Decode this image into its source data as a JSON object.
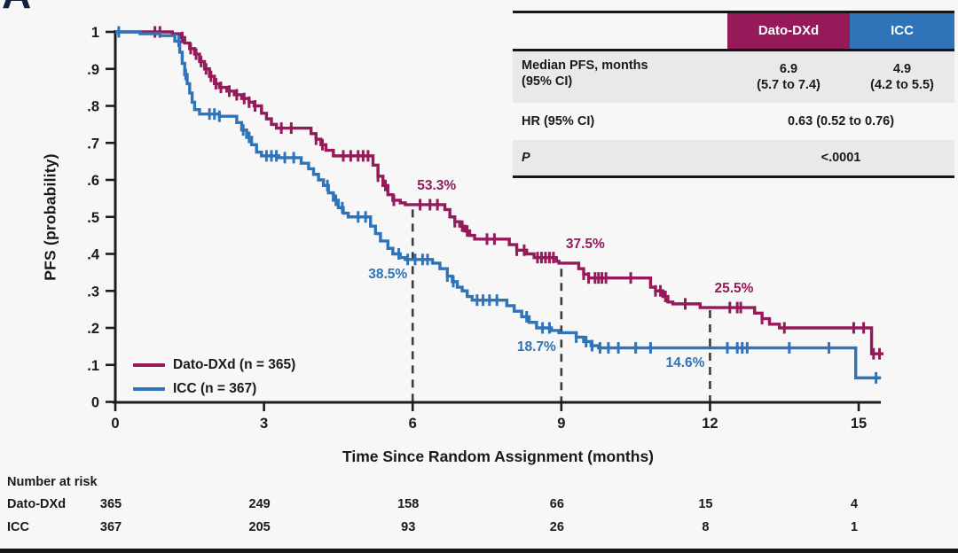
{
  "panel_label": "A",
  "colors": {
    "dato": "#96195a",
    "icc": "#2f74b8",
    "axis": "#1d1d1f",
    "dashed_line": "#3b3b3b",
    "row_shade": "#e9e9ea",
    "background": "#f7f7f8"
  },
  "chart_data": {
    "type": "line",
    "subtype": "kaplan-meier-step",
    "xlabel": "Time Since Random Assignment (months)",
    "ylabel": "PFS (probability)",
    "xlim": [
      0,
      15.5
    ],
    "ylim": [
      0,
      1
    ],
    "x_ticks": [
      0,
      3,
      6,
      9,
      12,
      15
    ],
    "x_tick_labels": [
      "0",
      "3",
      "6",
      "9",
      "12",
      "15"
    ],
    "y_ticks": [
      1,
      0.9,
      0.8,
      0.7,
      0.6,
      0.5,
      0.4,
      0.3,
      0.2,
      0.1,
      0
    ],
    "y_tick_labels": [
      "1",
      ".9",
      ".8",
      ".7",
      ".6",
      ".5",
      ".4",
      ".3",
      ".2",
      ".1",
      "0"
    ],
    "grid": false,
    "legend_position": "lower-left-inside",
    "series": [
      {
        "name": "Dato-DXd (n = 365)",
        "short_name": "Dato-DXd",
        "color": "#96195a",
        "points": [
          [
            0,
            1.0
          ],
          [
            1.15,
            0.995
          ],
          [
            1.3,
            0.985
          ],
          [
            1.4,
            0.97
          ],
          [
            1.5,
            0.955
          ],
          [
            1.6,
            0.94
          ],
          [
            1.7,
            0.92
          ],
          [
            1.8,
            0.9
          ],
          [
            1.9,
            0.88
          ],
          [
            2.0,
            0.86
          ],
          [
            2.1,
            0.85
          ],
          [
            2.25,
            0.84
          ],
          [
            2.4,
            0.83
          ],
          [
            2.55,
            0.82
          ],
          [
            2.7,
            0.81
          ],
          [
            2.8,
            0.8
          ],
          [
            2.95,
            0.78
          ],
          [
            3.05,
            0.765
          ],
          [
            3.15,
            0.75
          ],
          [
            3.25,
            0.74
          ],
          [
            3.95,
            0.725
          ],
          [
            4.05,
            0.71
          ],
          [
            4.15,
            0.695
          ],
          [
            4.25,
            0.68
          ],
          [
            4.4,
            0.665
          ],
          [
            5.2,
            0.64
          ],
          [
            5.3,
            0.61
          ],
          [
            5.4,
            0.585
          ],
          [
            5.5,
            0.56
          ],
          [
            5.6,
            0.545
          ],
          [
            5.75,
            0.538
          ],
          [
            5.85,
            0.533
          ],
          [
            6.65,
            0.52
          ],
          [
            6.75,
            0.5
          ],
          [
            6.85,
            0.487
          ],
          [
            6.95,
            0.475
          ],
          [
            7.05,
            0.462
          ],
          [
            7.15,
            0.45
          ],
          [
            7.25,
            0.44
          ],
          [
            7.95,
            0.425
          ],
          [
            8.1,
            0.41
          ],
          [
            8.3,
            0.4
          ],
          [
            8.45,
            0.39
          ],
          [
            8.9,
            0.38
          ],
          [
            8.95,
            0.375
          ],
          [
            9.35,
            0.36
          ],
          [
            9.45,
            0.345
          ],
          [
            9.55,
            0.335
          ],
          [
            10.8,
            0.31
          ],
          [
            10.9,
            0.3
          ],
          [
            11.05,
            0.285
          ],
          [
            11.15,
            0.27
          ],
          [
            11.25,
            0.265
          ],
          [
            11.8,
            0.255
          ],
          [
            12.9,
            0.24
          ],
          [
            13.05,
            0.225
          ],
          [
            13.2,
            0.21
          ],
          [
            13.4,
            0.2
          ],
          [
            15.26,
            0.13
          ],
          [
            15.5,
            0.13
          ]
        ],
        "censor_times": [
          0.8,
          0.9,
          1.35,
          1.52,
          1.63,
          1.73,
          1.83,
          1.93,
          2.03,
          2.13,
          2.3,
          2.45,
          2.6,
          2.7,
          2.82,
          3.35,
          3.55,
          4.05,
          4.18,
          4.6,
          4.75,
          4.9,
          5.0,
          5.1,
          5.3,
          5.45,
          5.62,
          6.15,
          6.35,
          6.5,
          6.85,
          7.0,
          7.1,
          7.5,
          7.65,
          8.1,
          8.25,
          8.52,
          8.6,
          8.68,
          8.76,
          8.84,
          9.45,
          9.55,
          9.68,
          9.75,
          9.82,
          9.9,
          10.4,
          10.9,
          11.0,
          11.1,
          11.5,
          12.4,
          12.55,
          12.62,
          13.05,
          13.5,
          14.9,
          15.1,
          15.3,
          15.42
        ]
      },
      {
        "name": "ICC (n = 367)",
        "short_name": "ICC",
        "color": "#2f74b8",
        "points": [
          [
            0,
            1.0
          ],
          [
            0.5,
            0.995
          ],
          [
            0.9,
            0.99
          ],
          [
            1.2,
            0.975
          ],
          [
            1.3,
            0.945
          ],
          [
            1.35,
            0.915
          ],
          [
            1.4,
            0.885
          ],
          [
            1.45,
            0.86
          ],
          [
            1.5,
            0.835
          ],
          [
            1.55,
            0.81
          ],
          [
            1.6,
            0.79
          ],
          [
            1.7,
            0.778
          ],
          [
            2.1,
            0.772
          ],
          [
            2.45,
            0.755
          ],
          [
            2.55,
            0.735
          ],
          [
            2.65,
            0.715
          ],
          [
            2.75,
            0.695
          ],
          [
            2.85,
            0.675
          ],
          [
            2.95,
            0.665
          ],
          [
            3.3,
            0.66
          ],
          [
            3.75,
            0.645
          ],
          [
            3.9,
            0.63
          ],
          [
            4.0,
            0.615
          ],
          [
            4.1,
            0.6
          ],
          [
            4.2,
            0.585
          ],
          [
            4.3,
            0.565
          ],
          [
            4.4,
            0.545
          ],
          [
            4.5,
            0.525
          ],
          [
            4.6,
            0.51
          ],
          [
            4.7,
            0.5
          ],
          [
            5.15,
            0.475
          ],
          [
            5.25,
            0.455
          ],
          [
            5.35,
            0.435
          ],
          [
            5.5,
            0.415
          ],
          [
            5.6,
            0.4
          ],
          [
            5.75,
            0.39
          ],
          [
            5.85,
            0.385
          ],
          [
            6.4,
            0.375
          ],
          [
            6.55,
            0.36
          ],
          [
            6.7,
            0.34
          ],
          [
            6.8,
            0.325
          ],
          [
            6.9,
            0.31
          ],
          [
            7.0,
            0.3
          ],
          [
            7.1,
            0.285
          ],
          [
            7.2,
            0.275
          ],
          [
            7.9,
            0.26
          ],
          [
            8.05,
            0.245
          ],
          [
            8.2,
            0.23
          ],
          [
            8.35,
            0.215
          ],
          [
            8.5,
            0.2
          ],
          [
            8.8,
            0.193
          ],
          [
            8.95,
            0.187
          ],
          [
            9.3,
            0.175
          ],
          [
            9.45,
            0.163
          ],
          [
            9.6,
            0.152
          ],
          [
            9.75,
            0.146
          ],
          [
            14.94,
            0.065
          ],
          [
            15.45,
            0.065
          ]
        ],
        "censor_times": [
          0.07,
          1.28,
          1.42,
          1.9,
          2.0,
          2.1,
          2.58,
          2.7,
          3.05,
          3.15,
          3.25,
          3.42,
          3.6,
          4.28,
          4.45,
          4.58,
          4.9,
          5.05,
          5.72,
          5.9,
          6.05,
          6.2,
          6.3,
          6.7,
          6.82,
          7.3,
          7.42,
          7.55,
          7.7,
          8.3,
          8.62,
          8.76,
          9.3,
          9.5,
          9.62,
          9.78,
          9.95,
          10.15,
          10.5,
          10.8,
          12.35,
          12.55,
          12.65,
          12.75,
          13.6,
          14.4,
          15.35
        ]
      }
    ],
    "dashed_lines": [
      {
        "t": 6,
        "p_top": 0.52
      },
      {
        "t": 9,
        "p_top": 0.36
      },
      {
        "t": 12,
        "p_top": 0.248
      }
    ],
    "annotations": [
      {
        "text": "53.3%",
        "series": 0,
        "t": 6,
        "p": 0.533,
        "placement": "above-right"
      },
      {
        "text": "38.5%",
        "series": 1,
        "t": 6,
        "p": 0.385,
        "placement": "below-left"
      },
      {
        "text": "37.5%",
        "series": 0,
        "t": 9,
        "p": 0.375,
        "placement": "above-right"
      },
      {
        "text": "18.7%",
        "series": 1,
        "t": 9,
        "p": 0.187,
        "placement": "below-left"
      },
      {
        "text": "25.5%",
        "series": 0,
        "t": 12,
        "p": 0.255,
        "placement": "above-right"
      },
      {
        "text": "14.6%",
        "series": 1,
        "t": 12,
        "p": 0.146,
        "placement": "below-left"
      }
    ]
  },
  "legend": {
    "items": [
      {
        "label": "Dato-DXd (n = 365)"
      },
      {
        "label": "ICC (n = 367)"
      }
    ]
  },
  "stats_table": {
    "column_headers": [
      "Dato-DXd",
      "ICC"
    ],
    "row1": {
      "label_line1": "Median PFS, months",
      "label_line2": "(95% CI)",
      "dato_line1": "6.9",
      "dato_line2": "(5.7 to 7.4)",
      "icc_line1": "4.9",
      "icc_line2": "(4.2 to 5.5)"
    },
    "row2": {
      "label": "HR (95% CI)",
      "value": "0.63 (0.52 to 0.76)"
    },
    "row3": {
      "label": "P",
      "value": "<.0001"
    }
  },
  "risk_table": {
    "title": "Number at risk",
    "rows": [
      {
        "label": "Dato-DXd",
        "values": [
          "365",
          "249",
          "158",
          "66",
          "15",
          "4"
        ]
      },
      {
        "label": "ICC",
        "values": [
          "367",
          "205",
          "93",
          "26",
          "8",
          "1"
        ]
      }
    ]
  }
}
